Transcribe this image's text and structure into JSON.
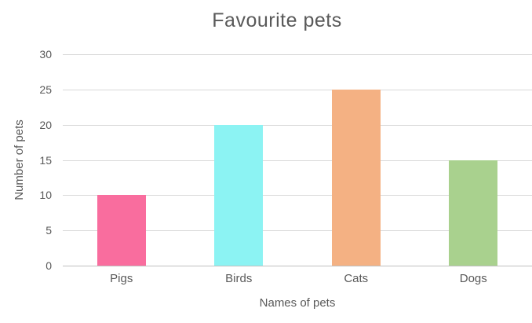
{
  "chart_data": {
    "type": "bar",
    "title": "Favourite pets",
    "categories": [
      "Pigs",
      "Birds",
      "Cats",
      "Dogs"
    ],
    "values": [
      10,
      20,
      25,
      15
    ],
    "bar_colors": [
      "#F96D9E",
      "#8CF3F3",
      "#F4B183",
      "#A9D18E"
    ],
    "xlabel": "Names of pets",
    "ylabel": "Number of pets",
    "ylim": [
      0,
      30
    ],
    "yticks": [
      0,
      5,
      10,
      15,
      20,
      25,
      30
    ],
    "grid": "horizontal",
    "legend": "none",
    "colors": {
      "text": "#595959",
      "gridline": "#D9D9D9",
      "axis_line": "#BFBFBF",
      "background": "#FFFFFF"
    }
  }
}
